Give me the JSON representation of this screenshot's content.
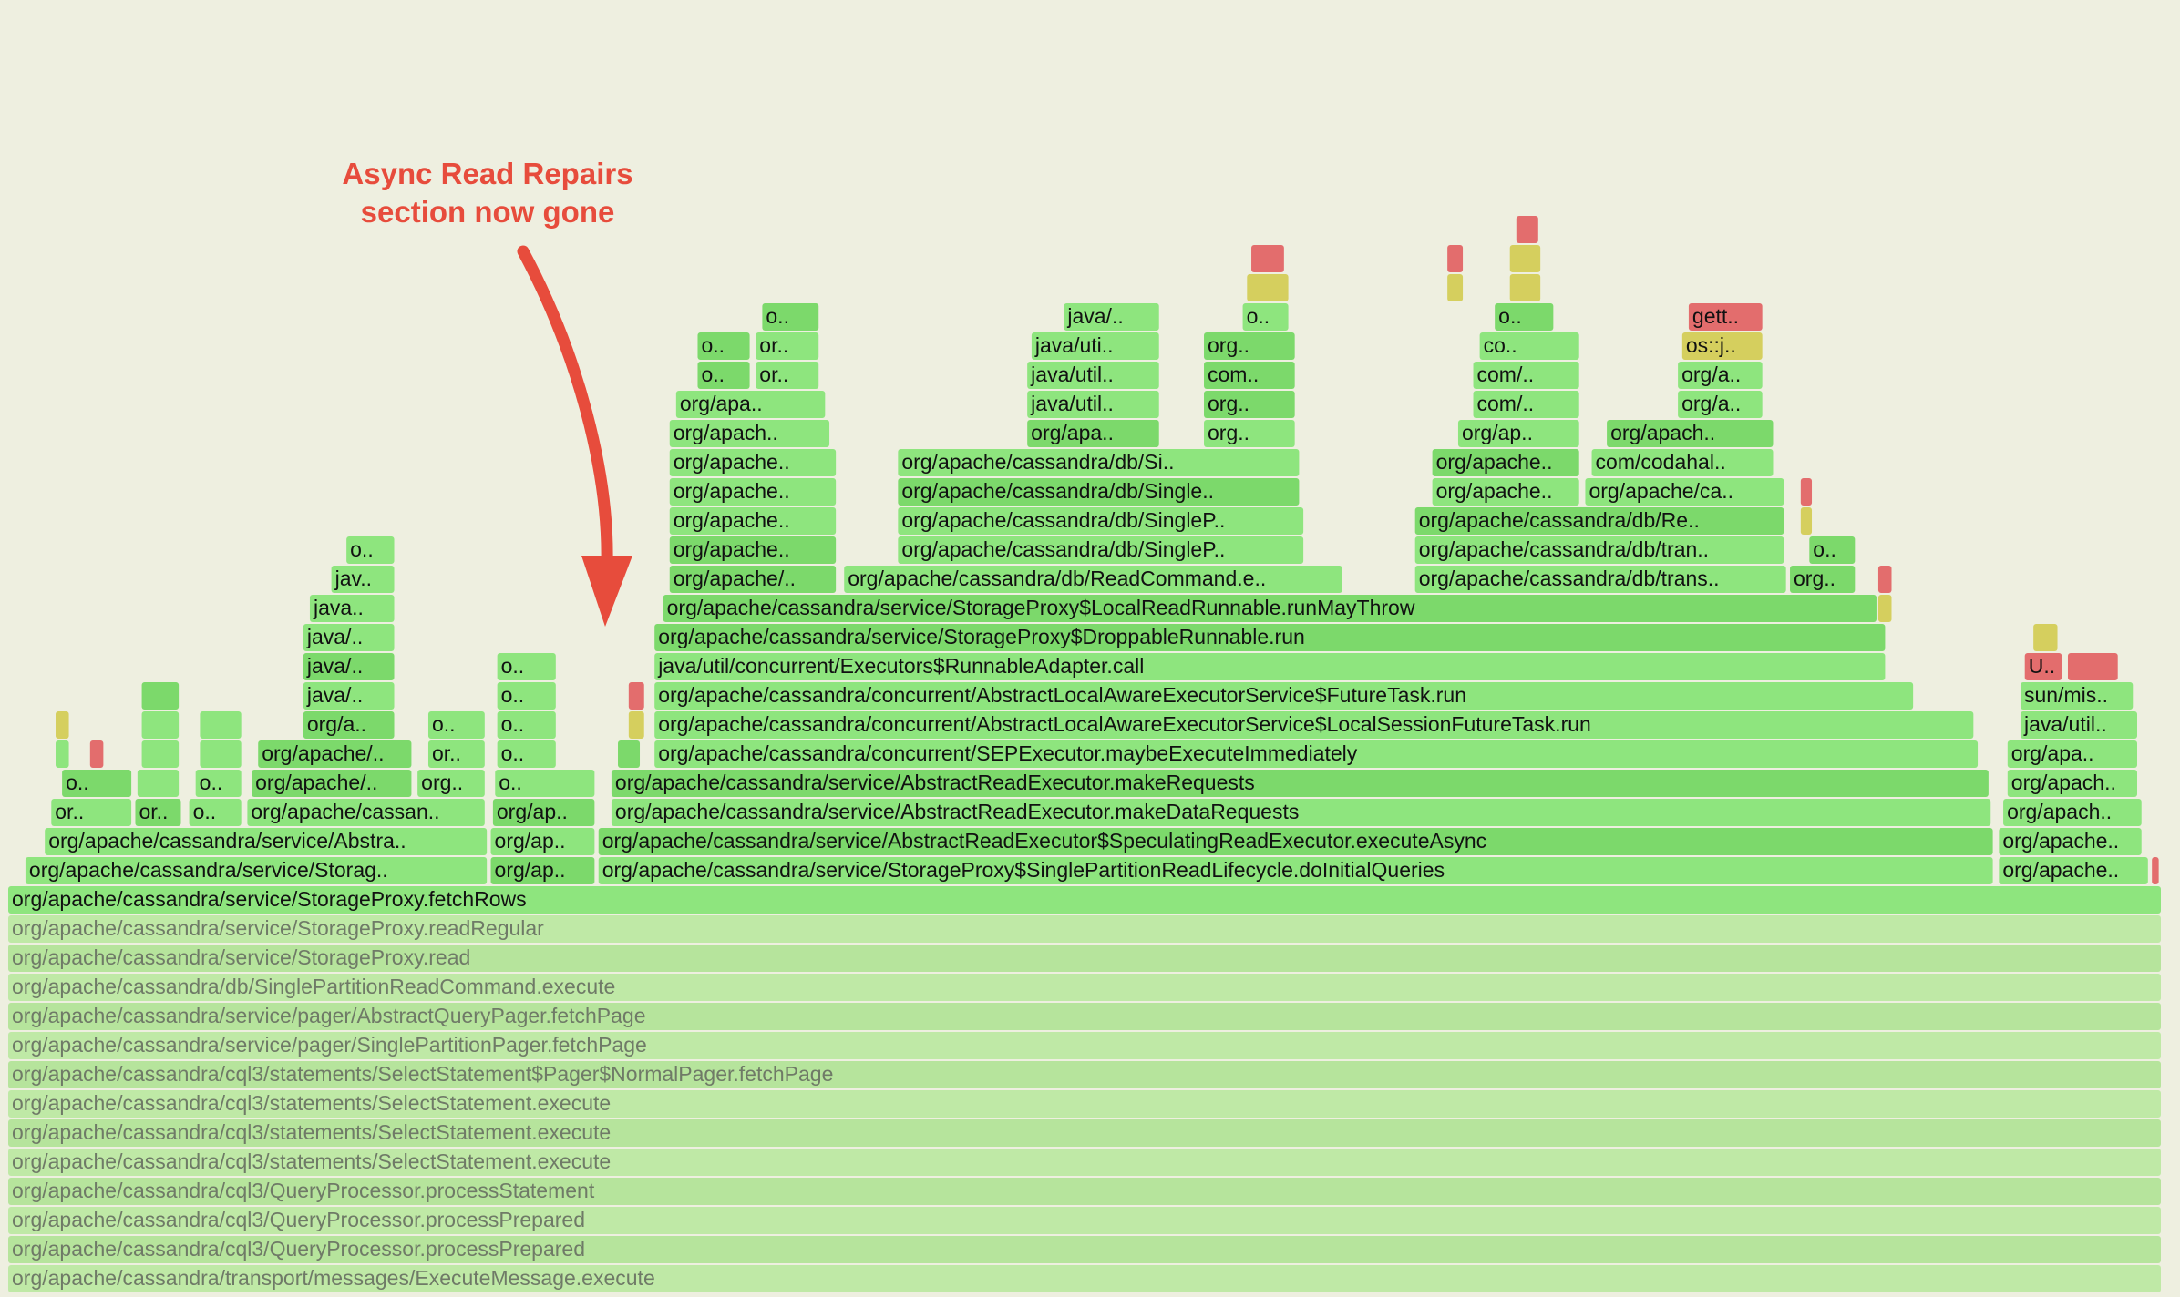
{
  "colors": {
    "background": "#eeefe0",
    "frame_green": "#8ee57e",
    "frame_green_dark": "#7cd96b",
    "frame_dim": "#bfe9a6",
    "frame_red": "#e36d6d",
    "frame_yellow": "#d5cf5e",
    "annotation": "#e74c3c"
  },
  "annotation": {
    "line1": "Async Read Repairs",
    "line2": "section now gone"
  },
  "chart_data": {
    "type": "flamegraph",
    "samples_width": 1000,
    "frames": [
      {
        "level": 0,
        "start": 0,
        "end": 1000,
        "name": "org/apache/cassandra/transport/messages/ExecuteMessage.execute",
        "dim": true
      },
      {
        "level": 1,
        "start": 0,
        "end": 1000,
        "name": "org/apache/cassandra/cql3/QueryProcessor.processPrepared",
        "dim": true
      },
      {
        "level": 2,
        "start": 0,
        "end": 1000,
        "name": "org/apache/cassandra/cql3/QueryProcessor.processPrepared",
        "dim": true
      },
      {
        "level": 3,
        "start": 0,
        "end": 1000,
        "name": "org/apache/cassandra/cql3/QueryProcessor.processStatement",
        "dim": true
      },
      {
        "level": 4,
        "start": 0,
        "end": 1000,
        "name": "org/apache/cassandra/cql3/statements/SelectStatement.execute",
        "dim": true
      },
      {
        "level": 5,
        "start": 0,
        "end": 1000,
        "name": "org/apache/cassandra/cql3/statements/SelectStatement.execute",
        "dim": true
      },
      {
        "level": 6,
        "start": 0,
        "end": 1000,
        "name": "org/apache/cassandra/cql3/statements/SelectStatement.execute",
        "dim": true
      },
      {
        "level": 7,
        "start": 0,
        "end": 1000,
        "name": "org/apache/cassandra/cql3/statements/SelectStatement$Pager$NormalPager.fetchPage",
        "dim": true
      },
      {
        "level": 8,
        "start": 0,
        "end": 1000,
        "name": "org/apache/cassandra/service/pager/SinglePartitionPager.fetchPage",
        "dim": true
      },
      {
        "level": 9,
        "start": 0,
        "end": 1000,
        "name": "org/apache/cassandra/service/pager/AbstractQueryPager.fetchPage",
        "dim": true
      },
      {
        "level": 10,
        "start": 0,
        "end": 1000,
        "name": "org/apache/cassandra/db/SinglePartitionReadCommand.execute",
        "dim": true
      },
      {
        "level": 11,
        "start": 0,
        "end": 1000,
        "name": "org/apache/cassandra/service/StorageProxy.read",
        "dim": true
      },
      {
        "level": 12,
        "start": 0,
        "end": 1000,
        "name": "org/apache/cassandra/service/StorageProxy.readRegular",
        "dim": true
      },
      {
        "level": 13,
        "start": 0,
        "end": 1000,
        "name": "org/apache/cassandra/service/StorageProxy.fetchRows"
      },
      {
        "level": 14,
        "start": 8,
        "end": 223,
        "name": "org/apache/cassandra/service/Storag.."
      },
      {
        "level": 14,
        "start": 224,
        "end": 273,
        "name": "org/ap.."
      },
      {
        "level": 14,
        "start": 274,
        "end": 922,
        "name": "org/apache/cassandra/service/StorageProxy$SinglePartitionReadLifecycle.doInitialQueries"
      },
      {
        "level": 14,
        "start": 924,
        "end": 994,
        "name": "org/apache.."
      },
      {
        "level": 14,
        "start": 995,
        "end": 999,
        "name": "",
        "color": "red"
      },
      {
        "level": 15,
        "start": 17,
        "end": 223,
        "name": "org/apache/cassandra/service/Abstra.."
      },
      {
        "level": 15,
        "start": 224,
        "end": 273,
        "name": "org/ap.."
      },
      {
        "level": 15,
        "start": 274,
        "end": 922,
        "name": "org/apache/cassandra/service/AbstractReadExecutor$SpeculatingReadExecutor.executeAsync"
      },
      {
        "level": 15,
        "start": 924,
        "end": 991,
        "name": "org/apache.."
      },
      {
        "level": 16,
        "start": 20,
        "end": 58,
        "name": "or.."
      },
      {
        "level": 16,
        "start": 59,
        "end": 81,
        "name": "or.."
      },
      {
        "level": 16,
        "start": 84,
        "end": 109,
        "name": "o.."
      },
      {
        "level": 16,
        "start": 111,
        "end": 222,
        "name": "org/apache/cassan.."
      },
      {
        "level": 16,
        "start": 225,
        "end": 273,
        "name": "org/ap.."
      },
      {
        "level": 16,
        "start": 280,
        "end": 921,
        "name": "org/apache/cassandra/service/AbstractReadExecutor.makeDataRequests"
      },
      {
        "level": 16,
        "start": 926,
        "end": 991,
        "name": "org/apach.."
      },
      {
        "level": 17,
        "start": 25,
        "end": 58,
        "name": "o.."
      },
      {
        "level": 17,
        "start": 60,
        "end": 80,
        "name": ""
      },
      {
        "level": 17,
        "start": 87,
        "end": 109,
        "name": "o.."
      },
      {
        "level": 17,
        "start": 113,
        "end": 188,
        "name": "org/apache/.."
      },
      {
        "level": 17,
        "start": 190,
        "end": 222,
        "name": "org.."
      },
      {
        "level": 17,
        "start": 226,
        "end": 273,
        "name": "o.."
      },
      {
        "level": 17,
        "start": 280,
        "end": 920,
        "name": "org/apache/cassandra/service/AbstractReadExecutor.makeRequests"
      },
      {
        "level": 17,
        "start": 928,
        "end": 989,
        "name": "org/apach.."
      },
      {
        "level": 18,
        "start": 22,
        "end": 29,
        "name": ""
      },
      {
        "level": 18,
        "start": 38,
        "end": 45,
        "name": "",
        "color": "red"
      },
      {
        "level": 18,
        "start": 62,
        "end": 80,
        "name": ""
      },
      {
        "level": 18,
        "start": 89,
        "end": 109,
        "name": ""
      },
      {
        "level": 18,
        "start": 116,
        "end": 188,
        "name": "org/apache/.."
      },
      {
        "level": 18,
        "start": 195,
        "end": 222,
        "name": "or.."
      },
      {
        "level": 18,
        "start": 227,
        "end": 255,
        "name": "o.."
      },
      {
        "level": 18,
        "start": 283,
        "end": 294,
        "name": ""
      },
      {
        "level": 18,
        "start": 300,
        "end": 915,
        "name": "org/apache/cassandra/concurrent/SEPExecutor.maybeExecuteImmediately"
      },
      {
        "level": 18,
        "start": 928,
        "end": 989,
        "name": "org/apa.."
      },
      {
        "level": 19,
        "start": 22,
        "end": 29,
        "name": "",
        "color": "yellow"
      },
      {
        "level": 19,
        "start": 62,
        "end": 80,
        "name": ""
      },
      {
        "level": 19,
        "start": 89,
        "end": 109,
        "name": ""
      },
      {
        "level": 19,
        "start": 137,
        "end": 180,
        "name": "org/a.."
      },
      {
        "level": 19,
        "start": 195,
        "end": 222,
        "name": "o.."
      },
      {
        "level": 19,
        "start": 227,
        "end": 255,
        "name": "o.."
      },
      {
        "level": 19,
        "start": 288,
        "end": 296,
        "name": "",
        "color": "yellow"
      },
      {
        "level": 19,
        "start": 300,
        "end": 913,
        "name": "org/apache/cassandra/concurrent/AbstractLocalAwareExecutorService$LocalSessionFutureTask.run"
      },
      {
        "level": 19,
        "start": 934,
        "end": 989,
        "name": "java/util.."
      },
      {
        "level": 20,
        "start": 62,
        "end": 80,
        "name": ""
      },
      {
        "level": 20,
        "start": 137,
        "end": 180,
        "name": "java/.."
      },
      {
        "level": 20,
        "start": 227,
        "end": 255,
        "name": "o.."
      },
      {
        "level": 20,
        "start": 288,
        "end": 296,
        "name": "",
        "color": "red"
      },
      {
        "level": 20,
        "start": 300,
        "end": 885,
        "name": "org/apache/cassandra/concurrent/AbstractLocalAwareExecutorService$FutureTask.run"
      },
      {
        "level": 20,
        "start": 934,
        "end": 987,
        "name": "sun/mis.."
      },
      {
        "level": 21,
        "start": 137,
        "end": 180,
        "name": "java/.."
      },
      {
        "level": 21,
        "start": 227,
        "end": 255,
        "name": "o.."
      },
      {
        "level": 21,
        "start": 300,
        "end": 872,
        "name": "java/util/concurrent/Executors$RunnableAdapter.call"
      },
      {
        "level": 21,
        "start": 936,
        "end": 954,
        "name": "U..",
        "color": "red"
      },
      {
        "level": 21,
        "start": 956,
        "end": 980,
        "name": "",
        "color": "red"
      },
      {
        "level": 22,
        "start": 137,
        "end": 180,
        "name": "java/.."
      },
      {
        "level": 22,
        "start": 300,
        "end": 872,
        "name": "org/apache/cassandra/service/StorageProxy$DroppableRunnable.run"
      },
      {
        "level": 22,
        "start": 940,
        "end": 952,
        "name": "",
        "color": "yellow"
      },
      {
        "level": 23,
        "start": 140,
        "end": 180,
        "name": "java.."
      },
      {
        "level": 23,
        "start": 304,
        "end": 868,
        "name": "org/apache/cassandra/service/StorageProxy$LocalReadRunnable.runMayThrow"
      },
      {
        "level": 23,
        "start": 868,
        "end": 875,
        "name": "",
        "color": "yellow"
      },
      {
        "level": 24,
        "start": 150,
        "end": 180,
        "name": "jav.."
      },
      {
        "level": 24,
        "start": 307,
        "end": 385,
        "name": "org/apache/.."
      },
      {
        "level": 24,
        "start": 388,
        "end": 620,
        "name": "org/apache/cassandra/db/ReadCommand.e.."
      },
      {
        "level": 24,
        "start": 653,
        "end": 826,
        "name": "org/apache/cassandra/db/trans.."
      },
      {
        "level": 24,
        "start": 827,
        "end": 858,
        "name": "org.."
      },
      {
        "level": 24,
        "start": 868,
        "end": 875,
        "name": "",
        "color": "red"
      },
      {
        "level": 25,
        "start": 157,
        "end": 180,
        "name": "o.."
      },
      {
        "level": 25,
        "start": 307,
        "end": 385,
        "name": "org/apache.."
      },
      {
        "level": 25,
        "start": 413,
        "end": 602,
        "name": "org/apache/cassandra/db/SingleP.."
      },
      {
        "level": 25,
        "start": 653,
        "end": 825,
        "name": "org/apache/cassandra/db/tran.."
      },
      {
        "level": 25,
        "start": 836,
        "end": 858,
        "name": "o.."
      },
      {
        "level": 26,
        "start": 307,
        "end": 385,
        "name": "org/apache.."
      },
      {
        "level": 26,
        "start": 413,
        "end": 602,
        "name": "org/apache/cassandra/db/SingleP.."
      },
      {
        "level": 26,
        "start": 653,
        "end": 825,
        "name": "org/apache/cassandra/db/Re.."
      },
      {
        "level": 26,
        "start": 832,
        "end": 838,
        "name": "",
        "color": "yellow"
      },
      {
        "level": 27,
        "start": 307,
        "end": 385,
        "name": "org/apache.."
      },
      {
        "level": 27,
        "start": 413,
        "end": 600,
        "name": "org/apache/cassandra/db/Single.."
      },
      {
        "level": 27,
        "start": 661,
        "end": 730,
        "name": "org/apache.."
      },
      {
        "level": 27,
        "start": 732,
        "end": 825,
        "name": "org/apache/ca.."
      },
      {
        "level": 27,
        "start": 832,
        "end": 838,
        "name": "",
        "color": "red"
      },
      {
        "level": 28,
        "start": 307,
        "end": 385,
        "name": "org/apache.."
      },
      {
        "level": 28,
        "start": 413,
        "end": 600,
        "name": "org/apache/cassandra/db/Si.."
      },
      {
        "level": 28,
        "start": 661,
        "end": 730,
        "name": "org/apache.."
      },
      {
        "level": 28,
        "start": 735,
        "end": 820,
        "name": "com/codahal.."
      },
      {
        "level": 29,
        "start": 307,
        "end": 382,
        "name": "org/apach.."
      },
      {
        "level": 29,
        "start": 473,
        "end": 535,
        "name": "org/apa.."
      },
      {
        "level": 29,
        "start": 555,
        "end": 598,
        "name": "org.."
      },
      {
        "level": 29,
        "start": 673,
        "end": 730,
        "name": "org/ap.."
      },
      {
        "level": 29,
        "start": 742,
        "end": 820,
        "name": "org/apach.."
      },
      {
        "level": 30,
        "start": 310,
        "end": 380,
        "name": "org/apa.."
      },
      {
        "level": 30,
        "start": 473,
        "end": 535,
        "name": "java/util.."
      },
      {
        "level": 30,
        "start": 555,
        "end": 598,
        "name": "org.."
      },
      {
        "level": 30,
        "start": 680,
        "end": 730,
        "name": "com/.."
      },
      {
        "level": 30,
        "start": 775,
        "end": 815,
        "name": "org/a.."
      },
      {
        "level": 31,
        "start": 320,
        "end": 345,
        "name": "o.."
      },
      {
        "level": 31,
        "start": 347,
        "end": 377,
        "name": "or.."
      },
      {
        "level": 31,
        "start": 473,
        "end": 535,
        "name": "java/util.."
      },
      {
        "level": 31,
        "start": 555,
        "end": 598,
        "name": "com.."
      },
      {
        "level": 31,
        "start": 680,
        "end": 730,
        "name": "com/.."
      },
      {
        "level": 31,
        "start": 775,
        "end": 815,
        "name": "org/a.."
      },
      {
        "level": 32,
        "start": 320,
        "end": 345,
        "name": "o.."
      },
      {
        "level": 32,
        "start": 347,
        "end": 377,
        "name": "or.."
      },
      {
        "level": 32,
        "start": 475,
        "end": 535,
        "name": "java/uti.."
      },
      {
        "level": 32,
        "start": 555,
        "end": 598,
        "name": "org.."
      },
      {
        "level": 32,
        "start": 683,
        "end": 730,
        "name": "co.."
      },
      {
        "level": 32,
        "start": 777,
        "end": 815,
        "name": "os::j..",
        "color": "yellow"
      },
      {
        "level": 33,
        "start": 350,
        "end": 377,
        "name": "o.."
      },
      {
        "level": 33,
        "start": 490,
        "end": 535,
        "name": "java/.."
      },
      {
        "level": 33,
        "start": 573,
        "end": 595,
        "name": "o.."
      },
      {
        "level": 33,
        "start": 690,
        "end": 718,
        "name": "o.."
      },
      {
        "level": 33,
        "start": 780,
        "end": 815,
        "name": "gett..",
        "color": "red"
      },
      {
        "level": 34,
        "start": 575,
        "end": 595,
        "name": "",
        "color": "yellow"
      },
      {
        "level": 34,
        "start": 668,
        "end": 676,
        "name": "",
        "color": "yellow"
      },
      {
        "level": 34,
        "start": 697,
        "end": 712,
        "name": "",
        "color": "yellow"
      },
      {
        "level": 35,
        "start": 577,
        "end": 593,
        "name": "",
        "color": "red"
      },
      {
        "level": 35,
        "start": 668,
        "end": 676,
        "name": "",
        "color": "red"
      },
      {
        "level": 35,
        "start": 697,
        "end": 712,
        "name": "",
        "color": "yellow"
      },
      {
        "level": 36,
        "start": 700,
        "end": 711,
        "name": "",
        "color": "red"
      }
    ]
  }
}
